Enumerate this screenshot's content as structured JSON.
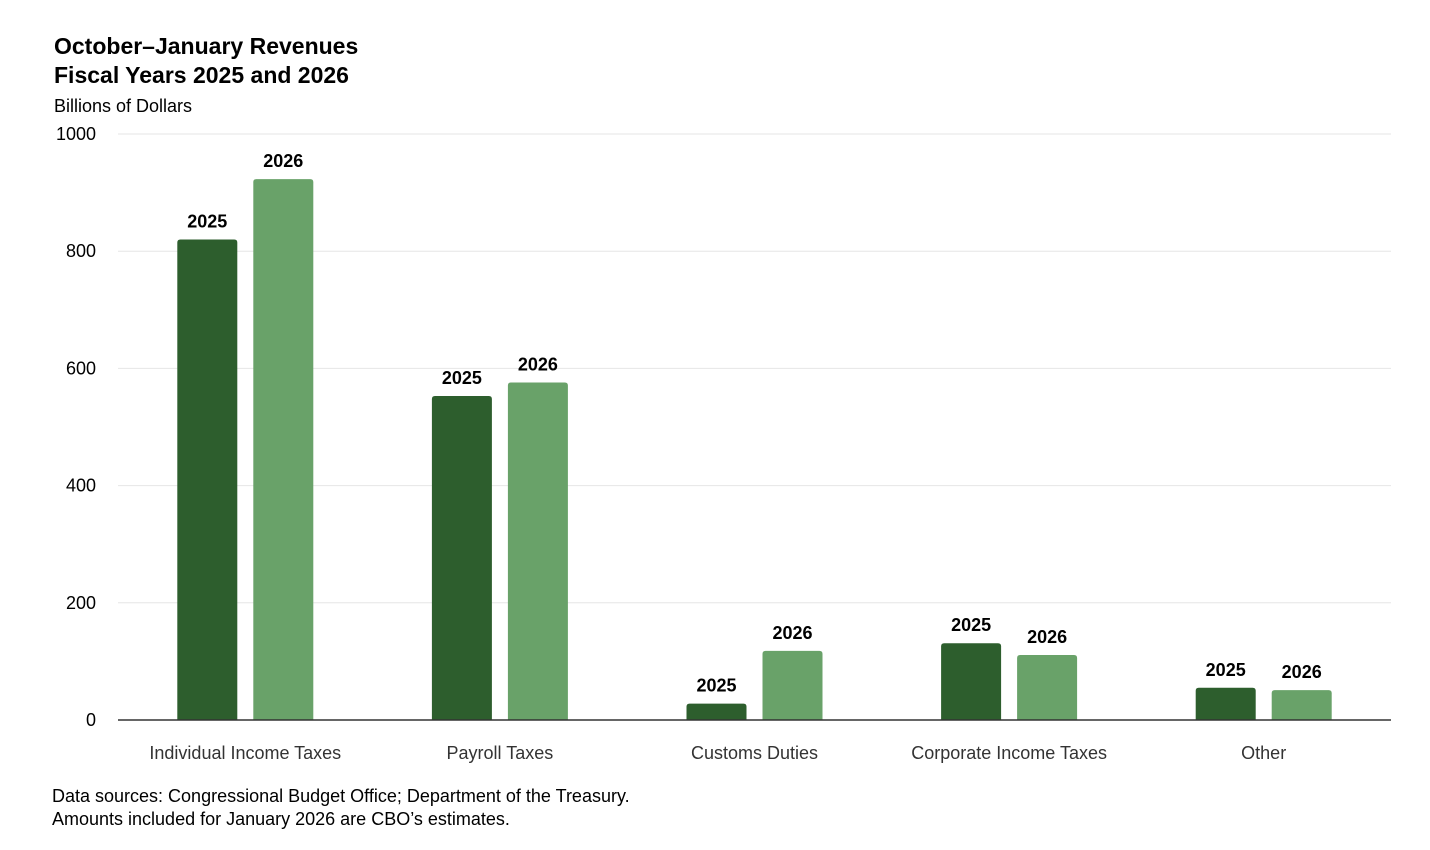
{
  "title_line1": "October–January Revenues",
  "title_line2": "Fiscal Years 2025 and 2026",
  "units_label": "Billions of Dollars",
  "source_line1": "Data sources: Congressional Budget Office; Department of the Treasury.",
  "source_line2": "Amounts included for January 2026 are CBO’s estimates.",
  "colors": {
    "series_2025": "#2d5e2d",
    "series_2026": "#69a269",
    "gridline": "#e6e6e6",
    "axis": "#333333"
  },
  "chart_data": {
    "type": "bar",
    "title": "October–January Revenues Fiscal Years 2025 and 2026",
    "ylabel": "Billions of Dollars",
    "xlabel": "",
    "ylim": [
      0,
      1000
    ],
    "yticks": [
      0,
      200,
      400,
      600,
      800,
      1000
    ],
    "grid": true,
    "categories": [
      "Individual Income Taxes",
      "Payroll Taxes",
      "Customs Duties",
      "Corporate Income Taxes",
      "Other"
    ],
    "series": [
      {
        "name": "2025",
        "values": [
          820,
          553,
          28,
          131,
          55
        ]
      },
      {
        "name": "2026",
        "values": [
          923,
          576,
          118,
          111,
          51
        ]
      }
    ]
  }
}
